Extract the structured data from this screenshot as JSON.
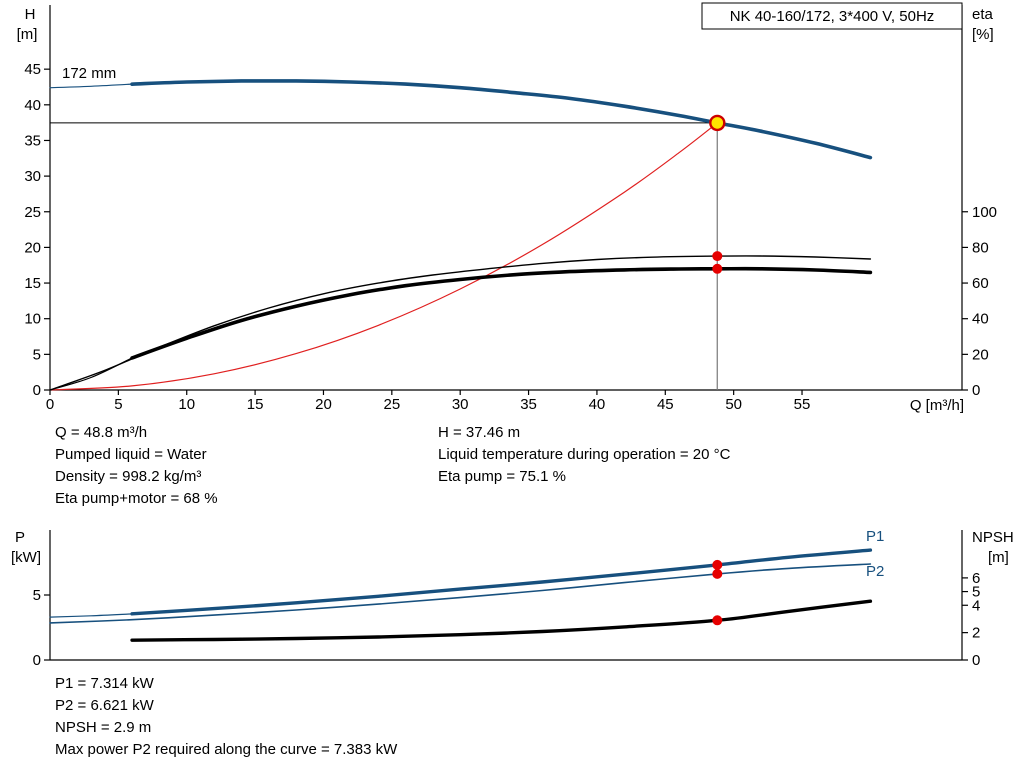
{
  "title_box": {
    "label": "NK 40-160/172, 3*400 V, 50Hz"
  },
  "top_chart": {
    "y_axis_left_name": "H",
    "y_axis_left_unit": "[m]",
    "y_axis_right_name": "eta",
    "y_axis_right_unit": "[%]",
    "x_axis_label": "Q [m³/h]",
    "impeller_label": "172 mm"
  },
  "bottom_chart": {
    "y_axis_left_name": "P",
    "y_axis_left_unit": "[kW]",
    "y_axis_right_name": "NPSH",
    "y_axis_right_unit": "[m]",
    "p1_label": "P1",
    "p2_label": "P2"
  },
  "info_top": {
    "left": [
      "Q = 48.8 m³/h",
      "Pumped liquid = Water",
      "Density = 998.2 kg/m³",
      "Eta pump+motor = 68 %"
    ],
    "right": [
      "H = 37.46 m",
      "Liquid temperature during operation = 20 °C",
      "Eta pump = 75.1 %"
    ]
  },
  "info_bottom": [
    "P1 = 7.314 kW",
    "P2 = 6.621 kW",
    "NPSH = 2.9 m",
    "Max power P2 required along the curve = 7.383 kW"
  ],
  "colors": {
    "curve_blue": "#17507e",
    "curve_red": "#e02020",
    "curve_black": "#000000",
    "dot_red": "#e60000",
    "duty_fill": "#ffe600",
    "duty_ring": "#cc0000",
    "guide_gray": "#777777",
    "axis_black": "#000000"
  },
  "chart_data": [
    {
      "type": "line",
      "title": "NK 40-160/172, 3*400 V, 50Hz",
      "xlabel": "Q [m³/h]",
      "ylabel_left": "H [m]",
      "ylabel_right": "eta [%]",
      "xlim": [
        0,
        66.7
      ],
      "ylim_left": [
        0,
        54
      ],
      "ylim_right": [
        0,
        216
      ],
      "xticks": [
        0,
        5,
        10,
        15,
        20,
        25,
        30,
        35,
        40,
        45,
        50,
        55
      ],
      "yticks_left": [
        0,
        5,
        10,
        15,
        20,
        25,
        30,
        35,
        40,
        45
      ],
      "yticks_right": [
        0,
        20,
        40,
        60,
        80,
        100
      ],
      "grid": false,
      "duty_point": {
        "q": 48.8,
        "h": 37.46,
        "eta_pump": 75.1,
        "eta_pump_motor": 68
      },
      "guides": {
        "x": 48.8,
        "y": 37.46
      },
      "series": [
        {
          "name": "head-curve-lead",
          "axis": "left",
          "color": "#17507e",
          "width": 1.2,
          "points": [
            [
              0,
              42.4
            ],
            [
              3,
              42.6
            ],
            [
              6,
              42.9
            ]
          ]
        },
        {
          "name": "head-curve-172mm",
          "axis": "left",
          "color": "#17507e",
          "width": 3.6,
          "points": [
            [
              6,
              42.9
            ],
            [
              10,
              43.2
            ],
            [
              14,
              43.35
            ],
            [
              18,
              43.35
            ],
            [
              22,
              43.2
            ],
            [
              26,
              42.9
            ],
            [
              30,
              42.4
            ],
            [
              34,
              41.7
            ],
            [
              38,
              40.9
            ],
            [
              42,
              39.8
            ],
            [
              46,
              38.5
            ],
            [
              48.8,
              37.46
            ],
            [
              52,
              36.3
            ],
            [
              56,
              34.6
            ],
            [
              60,
              32.6
            ]
          ]
        },
        {
          "name": "system-curve",
          "axis": "left",
          "color": "#e02020",
          "width": 1.2,
          "points": [
            [
              0,
              0
            ],
            [
              6,
              0.57
            ],
            [
              12,
              2.27
            ],
            [
              18,
              5.1
            ],
            [
              24,
              9.06
            ],
            [
              30,
              14.16
            ],
            [
              36,
              20.39
            ],
            [
              42,
              27.75
            ],
            [
              46,
              33.28
            ],
            [
              48.8,
              37.46
            ]
          ]
        },
        {
          "name": "eta-pump-curve",
          "axis": "right",
          "color": "#000000",
          "width": 1.4,
          "points": [
            [
              0,
              0
            ],
            [
              4,
              11
            ],
            [
              8,
              24
            ],
            [
              12,
              36
            ],
            [
              16,
              46
            ],
            [
              20,
              54
            ],
            [
              24,
              60
            ],
            [
              28,
              64.5
            ],
            [
              32,
              68
            ],
            [
              36,
              71
            ],
            [
              40,
              73.2
            ],
            [
              44,
              74.5
            ],
            [
              48.8,
              75.1
            ],
            [
              52,
              75.2
            ],
            [
              56,
              74.6
            ],
            [
              60,
              73.5
            ]
          ]
        },
        {
          "name": "eta-pump-motor-lead",
          "axis": "right",
          "color": "#000000",
          "width": 1.2,
          "points": [
            [
              0,
              0
            ],
            [
              3,
              7
            ],
            [
              6,
              18
            ]
          ]
        },
        {
          "name": "eta-pump-motor-curve",
          "axis": "right",
          "color": "#000000",
          "width": 3.6,
          "points": [
            [
              6,
              18
            ],
            [
              10,
              29
            ],
            [
              14,
              39
            ],
            [
              18,
              47
            ],
            [
              22,
              53.5
            ],
            [
              26,
              58.5
            ],
            [
              30,
              62
            ],
            [
              34,
              64.7
            ],
            [
              38,
              66.4
            ],
            [
              42,
              67.4
            ],
            [
              46,
              67.9
            ],
            [
              48.8,
              68
            ],
            [
              52,
              68
            ],
            [
              56,
              67.3
            ],
            [
              60,
              66
            ]
          ]
        }
      ],
      "markers": [
        {
          "type": "duty",
          "axis": "left",
          "x": 48.8,
          "y": 37.46
        },
        {
          "type": "dot",
          "axis": "right",
          "x": 48.8,
          "y": 75.1
        },
        {
          "type": "dot",
          "axis": "right",
          "x": 48.8,
          "y": 68
        }
      ]
    },
    {
      "type": "line",
      "title": "Power and NPSH",
      "xlabel": "",
      "ylabel_left": "P [kW]",
      "ylabel_right": "NPSH [m]",
      "xlim": [
        0,
        66.7
      ],
      "ylim_left": [
        0,
        10
      ],
      "ylim_right": [
        0,
        9.5
      ],
      "xticks": [],
      "yticks_left": [
        0,
        5
      ],
      "yticks_right": [
        0,
        2,
        4,
        5,
        6
      ],
      "grid": false,
      "series": [
        {
          "name": "p1-curve-lead",
          "axis": "left",
          "color": "#17507e",
          "width": 1.2,
          "points": [
            [
              0,
              3.3
            ],
            [
              3,
              3.4
            ],
            [
              6,
              3.55
            ]
          ]
        },
        {
          "name": "p1-curve",
          "axis": "left",
          "color": "#17507e",
          "width": 3.4,
          "points": [
            [
              6,
              3.55
            ],
            [
              12,
              3.95
            ],
            [
              18,
              4.4
            ],
            [
              24,
              4.9
            ],
            [
              30,
              5.45
            ],
            [
              36,
              6.0
            ],
            [
              42,
              6.6
            ],
            [
              48.8,
              7.314
            ],
            [
              54,
              7.9
            ],
            [
              60,
              8.45
            ]
          ]
        },
        {
          "name": "p2-curve",
          "axis": "left",
          "color": "#17507e",
          "width": 1.6,
          "points": [
            [
              0,
              2.85
            ],
            [
              6,
              3.1
            ],
            [
              12,
              3.45
            ],
            [
              18,
              3.85
            ],
            [
              24,
              4.3
            ],
            [
              30,
              4.8
            ],
            [
              36,
              5.35
            ],
            [
              42,
              5.95
            ],
            [
              48.8,
              6.621
            ],
            [
              54,
              7.05
            ],
            [
              60,
              7.383
            ]
          ]
        },
        {
          "name": "npsh-curve",
          "axis": "right",
          "color": "#000000",
          "width": 3.4,
          "points": [
            [
              6,
              1.45
            ],
            [
              12,
              1.5
            ],
            [
              18,
              1.57
            ],
            [
              24,
              1.68
            ],
            [
              30,
              1.85
            ],
            [
              36,
              2.08
            ],
            [
              42,
              2.42
            ],
            [
              48.8,
              2.9
            ],
            [
              54,
              3.55
            ],
            [
              60,
              4.3
            ]
          ]
        }
      ],
      "markers": [
        {
          "type": "dot",
          "axis": "left",
          "x": 48.8,
          "y": 7.314
        },
        {
          "type": "dot",
          "axis": "left",
          "x": 48.8,
          "y": 6.621
        },
        {
          "type": "dot",
          "axis": "right",
          "x": 48.8,
          "y": 2.9
        }
      ]
    }
  ]
}
